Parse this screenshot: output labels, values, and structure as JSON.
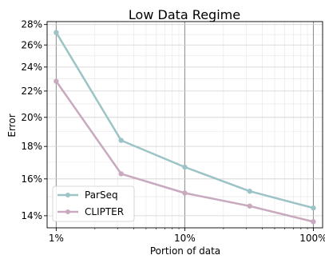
{
  "chart_data": {
    "type": "line",
    "title": "Low Data Regime",
    "xlabel": "Portion of data",
    "ylabel": "Error",
    "x_scale": "log",
    "y_scale": "log",
    "x": [
      1,
      3.2,
      10,
      32,
      100
    ],
    "xlim": [
      0.85,
      118
    ],
    "ylim": [
      13.4,
      28.3
    ],
    "x_ticks": [
      1,
      10,
      100
    ],
    "x_tick_labels": [
      "1%",
      "10%",
      "100%"
    ],
    "y_ticks": [
      14,
      16,
      18,
      20,
      22,
      24,
      26,
      28
    ],
    "y_tick_labels": [
      "14%",
      "16%",
      "18%",
      "20%",
      "22%",
      "24%",
      "26%",
      "28%"
    ],
    "series": [
      {
        "name": "ParSeq",
        "color": "#9cc3c6",
        "values": [
          27.2,
          18.4,
          16.7,
          15.3,
          14.4
        ]
      },
      {
        "name": "CLIPTER",
        "color": "#c8a9be",
        "values": [
          22.8,
          16.3,
          15.2,
          14.5,
          13.7
        ]
      }
    ],
    "grid": true,
    "legend_position": "lower-left"
  }
}
